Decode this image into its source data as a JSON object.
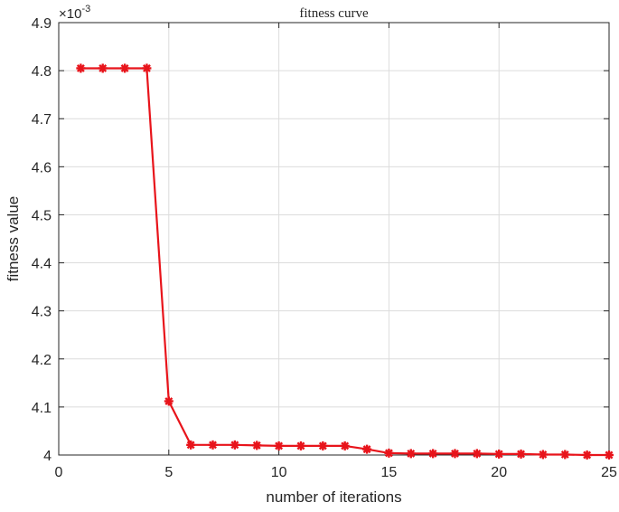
{
  "chart_data": {
    "type": "line",
    "title": "fitness curve",
    "xlabel": "number of iterations",
    "ylabel": "fitness value",
    "y_exponent_label": "×10",
    "y_exponent_power": "-3",
    "xlim": [
      0,
      25
    ],
    "ylim": [
      4.0,
      4.9
    ],
    "x_ticks": [
      0,
      5,
      10,
      15,
      20,
      25
    ],
    "x_tick_labels": [
      "0",
      "5",
      "10",
      "15",
      "20",
      "25"
    ],
    "y_ticks": [
      4.0,
      4.1,
      4.2,
      4.3,
      4.4,
      4.5,
      4.6,
      4.7,
      4.8,
      4.9
    ],
    "y_tick_labels": [
      "4",
      "4.1",
      "4.2",
      "4.3",
      "4.4",
      "4.5",
      "4.6",
      "4.7",
      "4.8",
      "4.9"
    ],
    "grid": true,
    "line_color": "#e8141b",
    "marker": "asterisk",
    "series": [
      {
        "x": [
          1,
          2,
          3,
          4,
          5,
          6,
          7,
          8,
          9,
          10,
          11,
          12,
          13,
          14,
          15,
          16,
          17,
          18,
          19,
          20,
          21,
          22,
          23,
          24,
          25
        ],
        "values": [
          4.805,
          4.805,
          4.805,
          4.805,
          4.112,
          4.021,
          4.021,
          4.021,
          4.02,
          4.019,
          4.019,
          4.019,
          4.019,
          4.012,
          4.004,
          4.003,
          4.003,
          4.003,
          4.003,
          4.002,
          4.002,
          4.001,
          4.001,
          4.0,
          4.0
        ]
      }
    ]
  }
}
